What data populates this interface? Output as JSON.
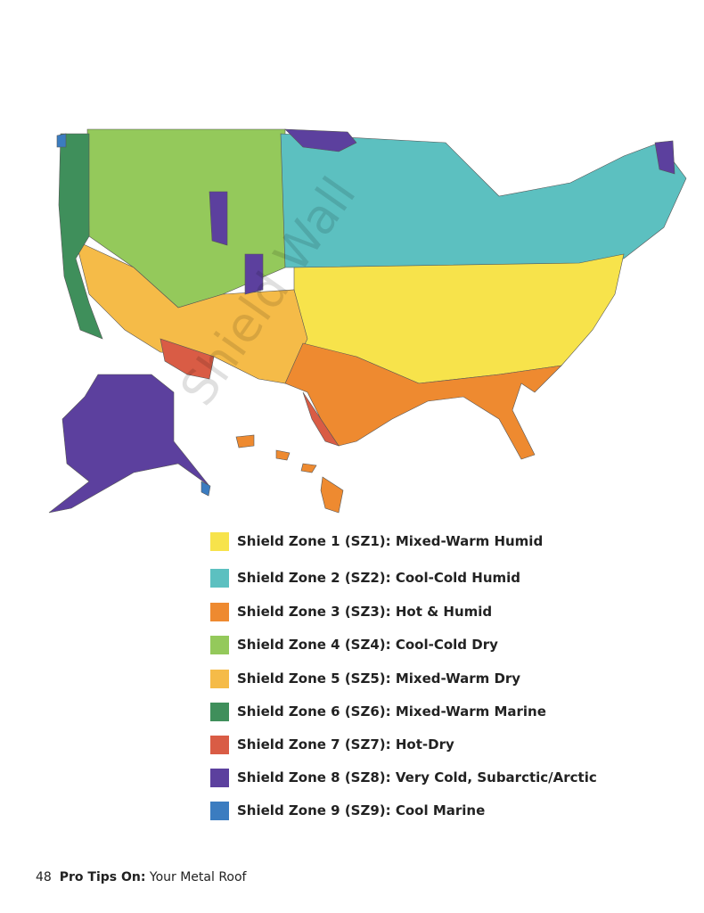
{
  "legend": [
    {
      "label": "Shield Zone 1 (SZ1): Mixed-Warm Humid",
      "color": "#f7e34b"
    },
    {
      "label": "Shield Zone 2 (SZ2): Cool-Cold Humid",
      "color": "#5cc0c0"
    },
    {
      "label": "Shield Zone 3 (SZ3): Hot & Humid",
      "color": "#ee8a30"
    },
    {
      "label": "Shield Zone 4 (SZ4): Cool-Cold Dry",
      "color": "#94c95b"
    },
    {
      "label": "Shield Zone 5 (SZ5): Mixed-Warm Dry",
      "color": "#f5bb48"
    },
    {
      "label": "Shield Zone 6 (SZ6): Mixed-Warm Marine",
      "color": "#3f8f5b"
    },
    {
      "label": "Shield Zone 7 (SZ7): Hot-Dry",
      "color": "#d95c45"
    },
    {
      "label": "Shield Zone 8 (SZ8): Very Cold, Subarctic/Arctic",
      "color": "#5c409e"
    },
    {
      "label": "Shield Zone 9 (SZ9): Cool Marine",
      "color": "#3b7cc0"
    }
  ],
  "watermark": "Shield Wall",
  "footer": {
    "page": "48",
    "bold": "Pro Tips On:",
    "text": "Your Metal Roof"
  }
}
